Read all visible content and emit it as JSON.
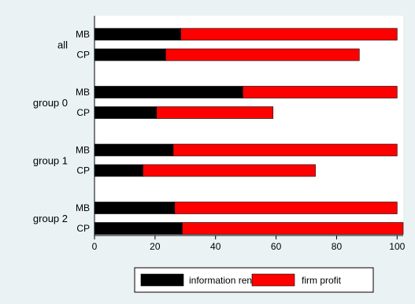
{
  "chart_data": {
    "type": "bar",
    "orientation": "horizontal",
    "stacked": true,
    "groups": [
      {
        "label": "all",
        "bars": [
          {
            "label": "MB",
            "values": [
              28.5,
              71.5
            ]
          },
          {
            "label": "CP",
            "values": [
              23.5,
              64.0
            ]
          }
        ]
      },
      {
        "label": "group 0",
        "bars": [
          {
            "label": "MB",
            "values": [
              49.0,
              51.0
            ]
          },
          {
            "label": "CP",
            "values": [
              20.5,
              38.5
            ]
          }
        ]
      },
      {
        "label": "group 1",
        "bars": [
          {
            "label": "MB",
            "values": [
              26.0,
              74.0
            ]
          },
          {
            "label": "CP",
            "values": [
              16.0,
              57.0
            ]
          }
        ]
      },
      {
        "label": "group 2",
        "bars": [
          {
            "label": "MB",
            "values": [
              26.5,
              73.5
            ]
          },
          {
            "label": "CP",
            "values": [
              29.0,
              73.0
            ]
          }
        ]
      }
    ],
    "series": [
      {
        "name": "information rent",
        "color": "#000000"
      },
      {
        "name": "firm profit",
        "color": "#ff0000"
      }
    ],
    "x_ticks": [
      "0",
      "20",
      "40",
      "60",
      "80",
      "100"
    ],
    "xlim": [
      0,
      102
    ],
    "grid": false,
    "legend_position": "bottom"
  }
}
